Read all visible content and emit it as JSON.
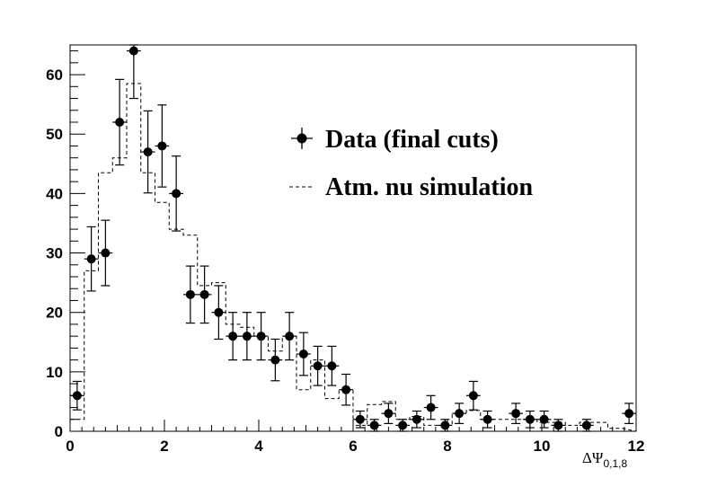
{
  "chart_data": {
    "type": "scatter",
    "title": "",
    "xlabel_main": "ΔΨ",
    "xlabel_sub": "0,1,8",
    "ylabel": "",
    "xlim": [
      0,
      12
    ],
    "ylim": [
      0,
      65
    ],
    "x_ticks": [
      "0",
      "2",
      "4",
      "6",
      "8",
      "10",
      "12"
    ],
    "y_ticks": [
      "0",
      "10",
      "20",
      "30",
      "40",
      "50",
      "60"
    ],
    "bin_width": 0.3,
    "series": [
      {
        "name": "Data (final cuts)",
        "style": "points-with-errorbars",
        "color": "#000000",
        "x": [
          0.15,
          0.45,
          0.75,
          1.05,
          1.35,
          1.65,
          1.95,
          2.25,
          2.55,
          2.85,
          3.15,
          3.45,
          3.75,
          4.05,
          4.35,
          4.65,
          4.95,
          5.25,
          5.55,
          5.85,
          6.15,
          6.45,
          6.75,
          7.05,
          7.35,
          7.65,
          7.95,
          8.25,
          8.55,
          8.85,
          9.45,
          9.75,
          10.05,
          10.35,
          10.95,
          11.85
        ],
        "y": [
          6,
          29,
          30,
          52,
          64,
          47,
          48,
          40,
          23,
          23,
          20,
          16,
          16,
          16,
          12,
          16,
          13,
          11,
          11,
          7,
          2,
          1,
          3,
          1,
          2,
          4,
          1,
          3,
          6,
          2,
          3,
          2,
          2,
          1,
          1,
          3
        ],
        "yerr": [
          2.4,
          5.4,
          5.5,
          7.2,
          8.0,
          6.9,
          6.9,
          6.3,
          4.8,
          4.8,
          4.5,
          4.0,
          4.0,
          4.0,
          3.5,
          4.0,
          3.6,
          3.3,
          3.3,
          2.6,
          1.4,
          1.0,
          1.7,
          1.0,
          1.4,
          2.0,
          1.0,
          1.7,
          2.4,
          1.4,
          1.7,
          1.4,
          1.4,
          1.0,
          1.0,
          1.7
        ]
      },
      {
        "name": "Atm. nu simulation",
        "style": "dashed-step-histogram",
        "color": "#000000",
        "edges": [
          0,
          0.3,
          0.6,
          0.9,
          1.2,
          1.5,
          1.8,
          2.1,
          2.4,
          2.7,
          3.0,
          3.3,
          3.6,
          3.9,
          4.2,
          4.5,
          4.8,
          5.1,
          5.4,
          5.7,
          6.0,
          6.3,
          6.6,
          6.9,
          7.2,
          7.5,
          7.8,
          8.1,
          8.4,
          8.7,
          9.0,
          9.3,
          9.6,
          9.9,
          10.2,
          10.5,
          10.8,
          11.1,
          11.4,
          11.7
        ],
        "values": [
          2,
          27,
          43.5,
          46,
          58.5,
          43.5,
          38.5,
          34,
          33,
          24.5,
          25,
          18,
          17.5,
          16,
          13.5,
          16,
          7,
          12,
          5.5,
          7,
          1,
          4.5,
          5,
          2,
          2.5,
          1,
          1,
          3,
          3.5,
          2,
          2,
          2,
          2,
          1.5,
          1.5,
          1,
          1.5,
          1.5,
          0.5
        ]
      }
    ],
    "legend": {
      "placement": "top-right",
      "entries": [
        {
          "label": "Data (final cuts)",
          "marker": "point-with-errorbar"
        },
        {
          "label": "Atm. nu simulation",
          "marker": "dashed-line"
        }
      ]
    },
    "grid": false
  }
}
